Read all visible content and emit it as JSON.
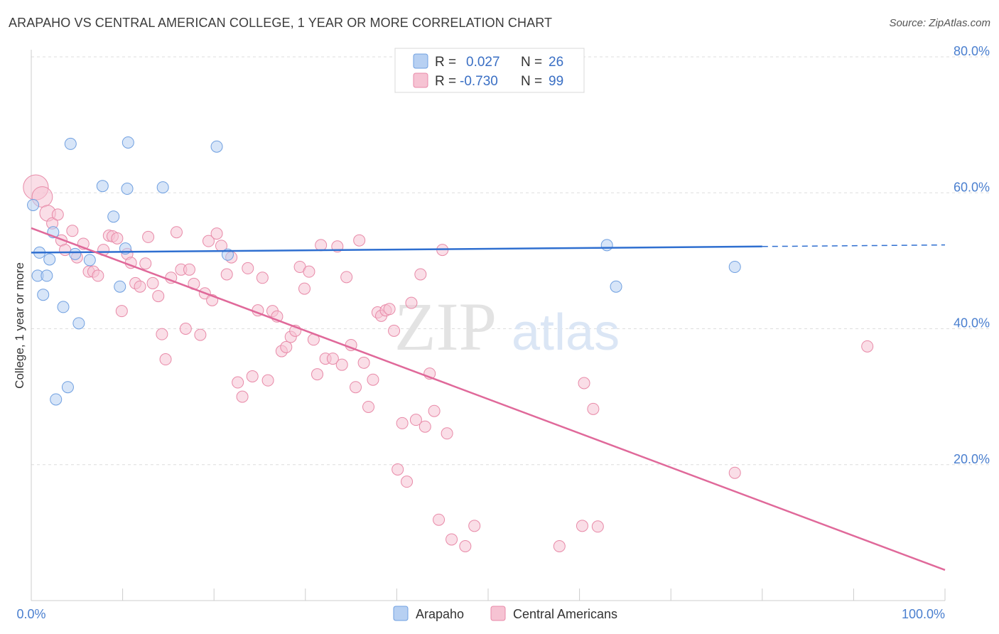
{
  "title": "ARAPAHO VS CENTRAL AMERICAN COLLEGE, 1 YEAR OR MORE CORRELATION CHART",
  "source": "Source: ZipAtlas.com",
  "watermark": {
    "zip": "ZIP",
    "atlas": "atlas"
  },
  "colors": {
    "arapaho": "#6f9fe0",
    "arapaho_fill": "#b7d0f2",
    "arapaho_line": "#2f6fd0",
    "central": "#e88aa8",
    "central_fill": "#f6c3d3",
    "central_line": "#e0699a",
    "tick_text": "#4a7fcf",
    "grid": "#dddddd"
  },
  "legend": {
    "rows": [
      {
        "series": "arapaho",
        "r_label": "R =",
        "r_value": "0.027",
        "n_label": "N =",
        "n_value": "26"
      },
      {
        "series": "central",
        "r_label": "R =",
        "r_value": "-0.730",
        "n_label": "N =",
        "n_value": "99"
      }
    ]
  },
  "bottom_legend": [
    "Arapaho",
    "Central Americans"
  ],
  "chart_data": {
    "type": "scatter",
    "title": "ARAPAHO VS CENTRAL AMERICAN COLLEGE, 1 YEAR OR MORE CORRELATION CHART",
    "xlabel": "",
    "ylabel": "College, 1 year or more",
    "xlim": [
      0,
      100
    ],
    "ylim": [
      0,
      80
    ],
    "x_tick_labels": [
      "0.0%",
      "100.0%"
    ],
    "y_ticks": [
      20,
      40,
      60,
      80
    ],
    "y_tick_labels": [
      "20.0%",
      "40.0%",
      "60.0%",
      "80.0%"
    ],
    "grid": true,
    "series": [
      {
        "name": "Arapaho",
        "r": 0.027,
        "n": 26,
        "trend": {
          "x": [
            0,
            80
          ],
          "y": [
            51.2,
            52.1
          ],
          "dashed_extension_to": 100
        },
        "points": [
          [
            0.2,
            58.2,
            1
          ],
          [
            0.7,
            47.8,
            1
          ],
          [
            0.9,
            51.2,
            1
          ],
          [
            1.3,
            45.0,
            1
          ],
          [
            1.7,
            47.8,
            1
          ],
          [
            2.0,
            50.2,
            1
          ],
          [
            2.4,
            54.2,
            1
          ],
          [
            3.5,
            43.2,
            1
          ],
          [
            4.0,
            31.4,
            1
          ],
          [
            4.3,
            67.2,
            1
          ],
          [
            2.7,
            29.6,
            1
          ],
          [
            5.2,
            40.8,
            1
          ],
          [
            7.8,
            61.0,
            1
          ],
          [
            6.4,
            50.1,
            1
          ],
          [
            9.0,
            56.5,
            1
          ],
          [
            9.7,
            46.2,
            1
          ],
          [
            10.3,
            51.8,
            1
          ],
          [
            10.5,
            60.6,
            1
          ],
          [
            10.6,
            67.4,
            1
          ],
          [
            14.4,
            60.8,
            1
          ],
          [
            20.3,
            66.8,
            1
          ],
          [
            21.5,
            50.9,
            1
          ],
          [
            4.8,
            51.0,
            1
          ],
          [
            63.0,
            52.3,
            1
          ],
          [
            64.0,
            46.2,
            1
          ],
          [
            77.0,
            49.1,
            1
          ]
        ]
      },
      {
        "name": "Central Americans",
        "r": -0.73,
        "n": 99,
        "trend": {
          "x": [
            0,
            100
          ],
          "y": [
            54.8,
            4.5
          ]
        },
        "points": [
          [
            0.5,
            60.8,
            2.2
          ],
          [
            1.2,
            59.4,
            1.8
          ],
          [
            1.8,
            57.0,
            1.4
          ],
          [
            2.3,
            55.5,
            1
          ],
          [
            2.9,
            56.8,
            1
          ],
          [
            3.3,
            53.0,
            1
          ],
          [
            3.7,
            51.6,
            1
          ],
          [
            4.5,
            54.4,
            1
          ],
          [
            5.0,
            50.5,
            1
          ],
          [
            5.7,
            52.5,
            1
          ],
          [
            6.3,
            48.4,
            1
          ],
          [
            6.8,
            48.4,
            1
          ],
          [
            7.3,
            47.8,
            1
          ],
          [
            7.9,
            51.6,
            1
          ],
          [
            8.5,
            53.7,
            1
          ],
          [
            8.9,
            53.6,
            1
          ],
          [
            9.4,
            53.3,
            1
          ],
          [
            9.9,
            42.6,
            1
          ],
          [
            10.5,
            51.0,
            1
          ],
          [
            10.9,
            49.7,
            1
          ],
          [
            11.4,
            46.7,
            1
          ],
          [
            11.9,
            46.2,
            1
          ],
          [
            12.5,
            49.6,
            1
          ],
          [
            12.8,
            53.5,
            1
          ],
          [
            13.3,
            46.7,
            1
          ],
          [
            13.9,
            44.8,
            1
          ],
          [
            14.3,
            39.2,
            1
          ],
          [
            14.7,
            35.5,
            1
          ],
          [
            15.3,
            47.5,
            1
          ],
          [
            15.9,
            54.2,
            1
          ],
          [
            16.4,
            48.7,
            1
          ],
          [
            16.9,
            40.0,
            1
          ],
          [
            17.3,
            48.7,
            1
          ],
          [
            17.8,
            46.6,
            1
          ],
          [
            18.5,
            39.1,
            1
          ],
          [
            19.0,
            45.2,
            1
          ],
          [
            19.4,
            52.9,
            1
          ],
          [
            19.8,
            44.2,
            1
          ],
          [
            20.3,
            54.0,
            1
          ],
          [
            20.8,
            52.2,
            1
          ],
          [
            21.4,
            48.0,
            1
          ],
          [
            21.9,
            50.5,
            1
          ],
          [
            22.6,
            32.1,
            1
          ],
          [
            23.1,
            30.0,
            1
          ],
          [
            23.7,
            48.9,
            1
          ],
          [
            24.2,
            33.0,
            1
          ],
          [
            24.8,
            42.7,
            1
          ],
          [
            25.3,
            47.5,
            1
          ],
          [
            25.9,
            32.4,
            1
          ],
          [
            26.4,
            42.6,
            1
          ],
          [
            26.9,
            41.8,
            1
          ],
          [
            27.4,
            36.7,
            1
          ],
          [
            27.9,
            37.3,
            1
          ],
          [
            28.4,
            38.8,
            1
          ],
          [
            28.9,
            39.7,
            1
          ],
          [
            29.4,
            49.1,
            1
          ],
          [
            29.9,
            45.9,
            1
          ],
          [
            30.4,
            48.4,
            1
          ],
          [
            30.9,
            38.4,
            1
          ],
          [
            31.3,
            33.3,
            1
          ],
          [
            31.7,
            52.3,
            1
          ],
          [
            32.2,
            35.6,
            1
          ],
          [
            33.0,
            35.6,
            1
          ],
          [
            33.5,
            52.1,
            1
          ],
          [
            34.0,
            34.7,
            1
          ],
          [
            34.5,
            47.6,
            1
          ],
          [
            35.0,
            37.6,
            1
          ],
          [
            35.5,
            31.4,
            1
          ],
          [
            35.9,
            53.0,
            1
          ],
          [
            36.4,
            35.0,
            1
          ],
          [
            36.9,
            28.5,
            1
          ],
          [
            37.4,
            32.5,
            1
          ],
          [
            37.9,
            42.4,
            1
          ],
          [
            38.3,
            41.9,
            1
          ],
          [
            38.8,
            42.7,
            1
          ],
          [
            39.2,
            42.9,
            1
          ],
          [
            39.7,
            39.7,
            1
          ],
          [
            40.1,
            19.3,
            1
          ],
          [
            40.6,
            26.1,
            1
          ],
          [
            41.1,
            17.5,
            1
          ],
          [
            41.6,
            43.8,
            1
          ],
          [
            42.1,
            26.6,
            1
          ],
          [
            42.6,
            48.0,
            1
          ],
          [
            43.1,
            25.6,
            1
          ],
          [
            43.6,
            33.4,
            1
          ],
          [
            44.1,
            27.9,
            1
          ],
          [
            44.6,
            11.9,
            1
          ],
          [
            45.0,
            51.6,
            1
          ],
          [
            45.5,
            24.6,
            1
          ],
          [
            46.0,
            9.0,
            1
          ],
          [
            47.5,
            8.0,
            1
          ],
          [
            48.5,
            11.0,
            1
          ],
          [
            57.8,
            8.0,
            1
          ],
          [
            60.3,
            11.0,
            1
          ],
          [
            62.0,
            10.9,
            1
          ],
          [
            60.5,
            32.0,
            1
          ],
          [
            61.5,
            28.2,
            1
          ],
          [
            77.0,
            18.8,
            1
          ],
          [
            91.5,
            37.4,
            1
          ]
        ]
      }
    ]
  }
}
